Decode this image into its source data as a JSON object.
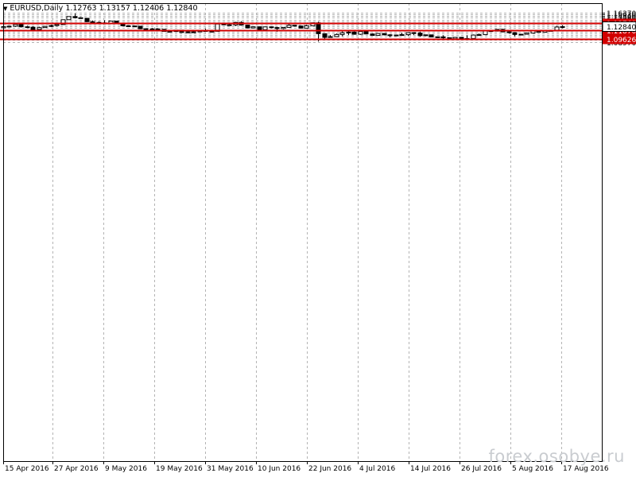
{
  "header": {
    "symbol_tf": "EURUSD,Daily",
    "ohlc": "1.12763 1.13157 1.12406 1.12840"
  },
  "watermark": "forex.osobye.ru",
  "colors": {
    "level_line": "#d20000",
    "grid": "#b4b4b4",
    "candle": "#000000",
    "price_box_fill": "#ffffff"
  },
  "chart_data": {
    "type": "candlestick",
    "symbol": "EURUSD",
    "timeframe": "Daily",
    "ylim": [
      0.0897,
      1.1637
    ],
    "y_ticks": [
      "1.16370",
      "1.15930",
      "1.15500",
      "1.15060",
      "1.14630",
      "1.14190",
      "1.13769",
      "1.13320",
      "1.12840",
      "1.12450",
      "1.11870",
      "1.11580",
      "1.11150",
      "1.10710",
      "1.10280",
      "1.09626",
      "1.09410",
      "1.08970"
    ],
    "x_labels": [
      "15 Apr 2016",
      "27 Apr 2016",
      "9 May 2016",
      "19 May 2016",
      "31 May 2016",
      "10 Jun 2016",
      "22 Jun 2016",
      "4 Jul 2016",
      "14 Jul 2016",
      "26 Jul 2016",
      "5 Aug 2016",
      "17 Aug 2016"
    ],
    "levels": [
      {
        "value": 1.13769,
        "label": "1.13769"
      },
      {
        "value": 1.1187,
        "label": "1.11870"
      },
      {
        "value": 1.09626,
        "label": "1.09626"
      }
    ],
    "current_price": {
      "value": 1.1284,
      "label": "1.12840"
    },
    "candles": [
      {
        "o": 1.1255,
        "h": 1.1295,
        "l": 1.1245,
        "c": 1.1283
      },
      {
        "o": 1.1283,
        "h": 1.13,
        "l": 1.1265,
        "c": 1.1295
      },
      {
        "o": 1.1295,
        "h": 1.1355,
        "l": 1.1275,
        "c": 1.134
      },
      {
        "o": 1.134,
        "h": 1.1375,
        "l": 1.126,
        "c": 1.128
      },
      {
        "o": 1.128,
        "h": 1.1305,
        "l": 1.1245,
        "c": 1.127
      },
      {
        "o": 1.127,
        "h": 1.1295,
        "l": 1.12,
        "c": 1.1212
      },
      {
        "o": 1.1212,
        "h": 1.128,
        "l": 1.1205,
        "c": 1.126
      },
      {
        "o": 1.126,
        "h": 1.1305,
        "l": 1.125,
        "c": 1.129
      },
      {
        "o": 1.129,
        "h": 1.1335,
        "l": 1.127,
        "c": 1.131
      },
      {
        "o": 1.131,
        "h": 1.135,
        "l": 1.1295,
        "c": 1.1337
      },
      {
        "o": 1.1337,
        "h": 1.1465,
        "l": 1.1335,
        "c": 1.146
      },
      {
        "o": 1.146,
        "h": 1.1545,
        "l": 1.1455,
        "c": 1.154
      },
      {
        "o": 1.154,
        "h": 1.162,
        "l": 1.149,
        "c": 1.151
      },
      {
        "o": 1.151,
        "h": 1.1525,
        "l": 1.1485,
        "c": 1.1495
      },
      {
        "o": 1.1495,
        "h": 1.15,
        "l": 1.14,
        "c": 1.141
      },
      {
        "o": 1.141,
        "h": 1.144,
        "l": 1.1375,
        "c": 1.139
      },
      {
        "o": 1.139,
        "h": 1.142,
        "l": 1.137,
        "c": 1.1378
      },
      {
        "o": 1.1378,
        "h": 1.1445,
        "l": 1.136,
        "c": 1.1375
      },
      {
        "o": 1.1375,
        "h": 1.143,
        "l": 1.1365,
        "c": 1.1425
      },
      {
        "o": 1.1425,
        "h": 1.143,
        "l": 1.136,
        "c": 1.137
      },
      {
        "o": 1.137,
        "h": 1.138,
        "l": 1.1295,
        "c": 1.1305
      },
      {
        "o": 1.1305,
        "h": 1.1315,
        "l": 1.129,
        "c": 1.13
      },
      {
        "o": 1.13,
        "h": 1.131,
        "l": 1.128,
        "c": 1.1295
      },
      {
        "o": 1.1295,
        "h": 1.1305,
        "l": 1.122,
        "c": 1.123
      },
      {
        "o": 1.123,
        "h": 1.124,
        "l": 1.119,
        "c": 1.1212
      },
      {
        "o": 1.1212,
        "h": 1.1245,
        "l": 1.1205,
        "c": 1.1225
      },
      {
        "o": 1.1225,
        "h": 1.124,
        "l": 1.1195,
        "c": 1.1215
      },
      {
        "o": 1.1215,
        "h": 1.1225,
        "l": 1.115,
        "c": 1.1163
      },
      {
        "o": 1.1163,
        "h": 1.1185,
        "l": 1.115,
        "c": 1.116
      },
      {
        "o": 1.116,
        "h": 1.12,
        "l": 1.115,
        "c": 1.1195
      },
      {
        "o": 1.1195,
        "h": 1.12,
        "l": 1.1125,
        "c": 1.1135
      },
      {
        "o": 1.1135,
        "h": 1.1165,
        "l": 1.111,
        "c": 1.115
      },
      {
        "o": 1.115,
        "h": 1.116,
        "l": 1.113,
        "c": 1.115
      },
      {
        "o": 1.115,
        "h": 1.12,
        "l": 1.114,
        "c": 1.1193
      },
      {
        "o": 1.1193,
        "h": 1.123,
        "l": 1.116,
        "c": 1.1163
      },
      {
        "o": 1.1163,
        "h": 1.12,
        "l": 1.1155,
        "c": 1.1165
      },
      {
        "o": 1.1165,
        "h": 1.136,
        "l": 1.116,
        "c": 1.135
      },
      {
        "o": 1.135,
        "h": 1.1365,
        "l": 1.132,
        "c": 1.133
      },
      {
        "o": 1.133,
        "h": 1.1345,
        "l": 1.1315,
        "c": 1.1325
      },
      {
        "o": 1.1325,
        "h": 1.1405,
        "l": 1.13,
        "c": 1.139
      },
      {
        "o": 1.139,
        "h": 1.142,
        "l": 1.131,
        "c": 1.1322
      },
      {
        "o": 1.1322,
        "h": 1.133,
        "l": 1.124,
        "c": 1.125
      },
      {
        "o": 1.125,
        "h": 1.129,
        "l": 1.124,
        "c": 1.128
      },
      {
        "o": 1.128,
        "h": 1.1285,
        "l": 1.1195,
        "c": 1.1205
      },
      {
        "o": 1.1205,
        "h": 1.1285,
        "l": 1.1195,
        "c": 1.1278
      },
      {
        "o": 1.1278,
        "h": 1.129,
        "l": 1.124,
        "c": 1.126
      },
      {
        "o": 1.126,
        "h": 1.128,
        "l": 1.1155,
        "c": 1.1235
      },
      {
        "o": 1.1235,
        "h": 1.127,
        "l": 1.1215,
        "c": 1.1265
      },
      {
        "o": 1.1265,
        "h": 1.138,
        "l": 1.1255,
        "c": 1.1318
      },
      {
        "o": 1.1318,
        "h": 1.1325,
        "l": 1.129,
        "c": 1.13
      },
      {
        "o": 1.13,
        "h": 1.1305,
        "l": 1.124,
        "c": 1.1245
      },
      {
        "o": 1.1245,
        "h": 1.133,
        "l": 1.124,
        "c": 1.1305
      },
      {
        "o": 1.1305,
        "h": 1.1388,
        "l": 1.13,
        "c": 1.138
      },
      {
        "o": 1.138,
        "h": 1.141,
        "l": 1.0905,
        "c": 1.1105
      },
      {
        "o": 1.1105,
        "h": 1.1115,
        "l": 1.0955,
        "c": 1.101
      },
      {
        "o": 1.101,
        "h": 1.107,
        "l": 1.1005,
        "c": 1.103
      },
      {
        "o": 1.103,
        "h": 1.111,
        "l": 1.102,
        "c": 1.1085
      },
      {
        "o": 1.1085,
        "h": 1.116,
        "l": 1.104,
        "c": 1.1128
      },
      {
        "o": 1.1128,
        "h": 1.1185,
        "l": 1.107,
        "c": 1.1145
      },
      {
        "o": 1.1145,
        "h": 1.116,
        "l": 1.108,
        "c": 1.109
      },
      {
        "o": 1.109,
        "h": 1.117,
        "l": 1.1075,
        "c": 1.116
      },
      {
        "o": 1.116,
        "h": 1.119,
        "l": 1.109,
        "c": 1.1098
      },
      {
        "o": 1.1098,
        "h": 1.1115,
        "l": 1.105,
        "c": 1.106
      },
      {
        "o": 1.106,
        "h": 1.112,
        "l": 1.1055,
        "c": 1.111
      },
      {
        "o": 1.111,
        "h": 1.1115,
        "l": 1.1065,
        "c": 1.1075
      },
      {
        "o": 1.1075,
        "h": 1.109,
        "l": 1.101,
        "c": 1.107
      },
      {
        "o": 1.107,
        "h": 1.108,
        "l": 1.105,
        "c": 1.106
      },
      {
        "o": 1.106,
        "h": 1.113,
        "l": 1.105,
        "c": 1.108
      },
      {
        "o": 1.108,
        "h": 1.114,
        "l": 1.1045,
        "c": 1.113
      },
      {
        "o": 1.113,
        "h": 1.114,
        "l": 1.107,
        "c": 1.112
      },
      {
        "o": 1.112,
        "h": 1.1155,
        "l": 1.103,
        "c": 1.1055
      },
      {
        "o": 1.1055,
        "h": 1.108,
        "l": 1.104,
        "c": 1.1075
      },
      {
        "o": 1.1075,
        "h": 1.108,
        "l": 1.101,
        "c": 1.102
      },
      {
        "o": 1.102,
        "h": 1.1035,
        "l": 1.0995,
        "c": 1.1025
      },
      {
        "o": 1.1025,
        "h": 1.106,
        "l": 1.098,
        "c": 1.1
      },
      {
        "o": 1.1,
        "h": 1.101,
        "l": 1.096,
        "c": 1.0975
      },
      {
        "o": 1.0975,
        "h": 1.102,
        "l": 1.095,
        "c": 1.101
      },
      {
        "o": 1.101,
        "h": 1.102,
        "l": 1.0955,
        "c": 1.097
      },
      {
        "o": 1.097,
        "h": 1.106,
        "l": 1.0965,
        "c": 1.098
      },
      {
        "o": 1.098,
        "h": 1.1085,
        "l": 1.097,
        "c": 1.107
      },
      {
        "o": 1.107,
        "h": 1.111,
        "l": 1.106,
        "c": 1.108
      },
      {
        "o": 1.108,
        "h": 1.119,
        "l": 1.1075,
        "c": 1.118
      },
      {
        "o": 1.118,
        "h": 1.1185,
        "l": 1.1155,
        "c": 1.117
      },
      {
        "o": 1.117,
        "h": 1.122,
        "l": 1.116,
        "c": 1.1213
      },
      {
        "o": 1.1213,
        "h": 1.123,
        "l": 1.114,
        "c": 1.115
      },
      {
        "o": 1.115,
        "h": 1.1165,
        "l": 1.111,
        "c": 1.113
      },
      {
        "o": 1.113,
        "h": 1.114,
        "l": 1.104,
        "c": 1.1085
      },
      {
        "o": 1.1085,
        "h": 1.11,
        "l": 1.107,
        "c": 1.109
      },
      {
        "o": 1.109,
        "h": 1.1135,
        "l": 1.1085,
        "c": 1.112
      },
      {
        "o": 1.112,
        "h": 1.119,
        "l": 1.1115,
        "c": 1.1178
      },
      {
        "o": 1.1178,
        "h": 1.1195,
        "l": 1.113,
        "c": 1.114
      },
      {
        "o": 1.114,
        "h": 1.118,
        "l": 1.1135,
        "c": 1.1175
      },
      {
        "o": 1.1175,
        "h": 1.1195,
        "l": 1.117,
        "c": 1.1185
      },
      {
        "o": 1.1185,
        "h": 1.1305,
        "l": 1.118,
        "c": 1.1275
      },
      {
        "o": 1.1275,
        "h": 1.1316,
        "l": 1.124,
        "c": 1.1284
      }
    ]
  }
}
